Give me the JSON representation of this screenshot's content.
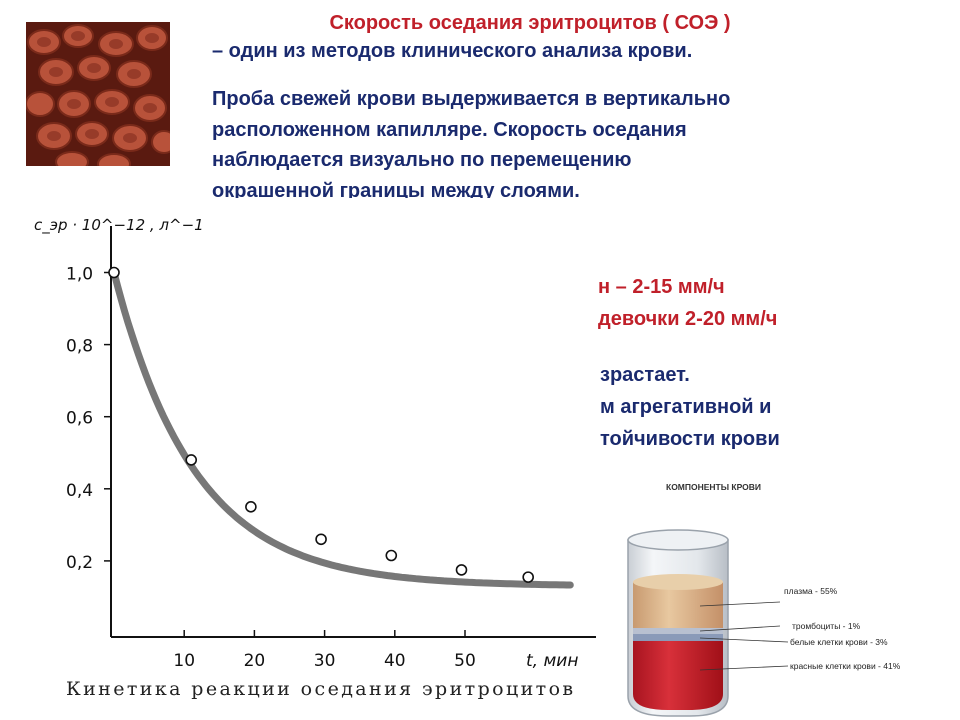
{
  "header": {
    "title": "Скорость оседания эритроцитов ( СОЭ )",
    "subtitle": "– один из методов клинического анализа крови."
  },
  "description": [
    "Проба свежей крови выдерживается в вертикально",
    "расположенном капилляре. Скорость оседания",
    "наблюдается визуально по перемещению",
    "окрашенной границы между слоями."
  ],
  "norms": [
    "н – 2-15 мм/ч",
    "девочки 2-20 мм/ч"
  ],
  "notes": [
    "зрастает.",
    "м агрегативной и",
    "тойчивости крови"
  ],
  "chart_data": {
    "type": "line",
    "ylabel": "c_эр · 10^−12 , л^−1",
    "xlabel": "t, мин",
    "caption": "Кинетика реакции оседания эритроцитов",
    "x_ticks": [
      "10",
      "20",
      "30",
      "40",
      "50"
    ],
    "y_ticks": [
      "1,0",
      "0,8",
      "0,6",
      "0,4",
      "0,2"
    ],
    "xlim": [
      0,
      60
    ],
    "ylim": [
      0,
      1.05
    ],
    "points": {
      "x": [
        0,
        11,
        19.5,
        29.5,
        39.5,
        49.5,
        59
      ],
      "y": [
        1.0,
        0.48,
        0.35,
        0.26,
        0.215,
        0.175,
        0.155
      ]
    },
    "curve_color": "#777777"
  },
  "components": {
    "title": "КОМПОНЕНТЫ КРОВИ",
    "labels": [
      "плазма - 55%",
      "тромбоциты - 1%",
      "белые клетки крови - 3%",
      "красные клетки крови - 41%"
    ],
    "colors": {
      "plasma": "#d8b48a",
      "platelets": "#b8c0d0",
      "white_cells": "#8a9ab8",
      "red_cells": "#c8202a"
    }
  },
  "photo": {
    "icon": "red-blood-cells-image"
  }
}
